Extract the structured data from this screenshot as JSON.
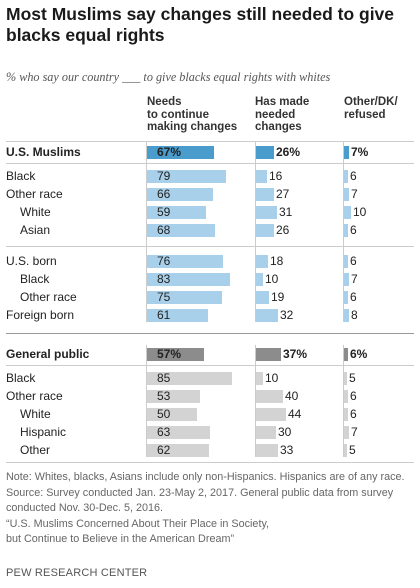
{
  "title": "Most Muslims say changes still needed to give blacks equal rights",
  "subtitle": "% who say our country ___ to give blacks equal rights with whites",
  "columns": [
    "Needs to continue making changes",
    "Has made needed changes",
    "Other/DK/ refused"
  ],
  "column_lines": [
    [
      "Needs",
      "to continue",
      "making changes"
    ],
    [
      "Has made",
      "needed",
      "changes"
    ],
    [
      "Other/DK/",
      "refused"
    ]
  ],
  "chart_data": {
    "type": "bar",
    "categories": [
      "U.S. Muslims",
      "Black",
      "Other race",
      "White",
      "Asian",
      "U.S. born",
      "Black",
      "Other race",
      "Foreign born",
      "General public",
      "Black",
      "Other race",
      "White",
      "Hispanic",
      "Other"
    ],
    "series": [
      {
        "name": "Needs to continue making changes",
        "values": [
          67,
          79,
          66,
          59,
          68,
          76,
          83,
          75,
          61,
          57,
          85,
          53,
          50,
          63,
          62
        ]
      },
      {
        "name": "Has made needed changes",
        "values": [
          26,
          16,
          27,
          31,
          26,
          18,
          10,
          19,
          32,
          37,
          10,
          40,
          44,
          30,
          33
        ]
      },
      {
        "name": "Other/DK/ refused",
        "values": [
          7,
          6,
          7,
          10,
          6,
          6,
          7,
          6,
          8,
          6,
          5,
          6,
          6,
          7,
          5
        ]
      }
    ],
    "value_labels": [
      [
        "67%",
        "26%",
        "7%"
      ],
      [
        "79",
        "16",
        "6"
      ],
      [
        "66",
        "27",
        "7"
      ],
      [
        "59",
        "31",
        "10"
      ],
      [
        "68",
        "26",
        "6"
      ],
      [
        "76",
        "18",
        "6"
      ],
      [
        "83",
        "10",
        "7"
      ],
      [
        "75",
        "19",
        "6"
      ],
      [
        "61",
        "32",
        "8"
      ],
      [
        "57%",
        "37%",
        "6%"
      ],
      [
        "85",
        "10",
        "5"
      ],
      [
        "53",
        "40",
        "6"
      ],
      [
        "50",
        "44",
        "6"
      ],
      [
        "63",
        "30",
        "7"
      ],
      [
        "62",
        "33",
        "5"
      ]
    ]
  },
  "row_labels": [
    "U.S. Muslims",
    "Black",
    "Other race",
    "White",
    "Asian",
    "U.S. born",
    "Black",
    "Other race",
    "Foreign born",
    "General public",
    "Black",
    "Other race",
    "White",
    "Hispanic",
    "Other"
  ],
  "notes": [
    "Note: Whites, blacks, Asians include only non-Hispanics. Hispanics are of any race.",
    "Source: Survey conducted Jan. 23-May 2, 2017. General public data from survey",
    "conducted Nov. 30-Dec. 5, 2016.",
    "“U.S. Muslims Concerned About Their Place in Society,",
    "but Continue to Believe in the American Dream”"
  ],
  "brand": "PEW RESEARCH CENTER",
  "colors": {
    "muslim_bar": "#a9d0ea",
    "muslim_highlight": "#4a9ccd",
    "public_bar": "#d3d3d3",
    "public_highlight": "#8c8c8c"
  }
}
